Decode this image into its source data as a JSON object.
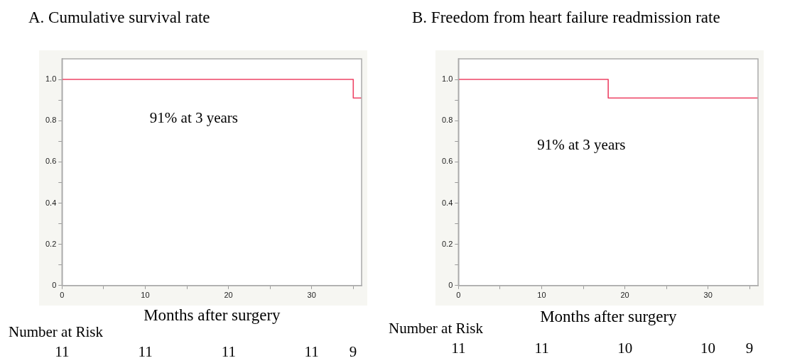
{
  "chart_data": [
    {
      "type": "step",
      "title": "A. Cumulative survival rate",
      "xlabel": "Months after surgery",
      "series": [
        {
          "color": "#ee4466",
          "x": [
            0,
            35,
            36
          ],
          "values": [
            1,
            0.91,
            0.91
          ]
        }
      ],
      "xlim": [
        0,
        36
      ],
      "xticks": [
        0,
        {
          "value": 5,
          "label": null
        },
        10,
        {
          "value": 15,
          "label": null
        },
        20,
        {
          "value": 25,
          "label": null
        },
        30,
        {
          "value": 35,
          "label": null
        }
      ],
      "ylim": [
        0,
        1.1
      ],
      "yticks": [
        0,
        {
          "value": 0.1,
          "label": null
        },
        0.2,
        {
          "value": 0.3,
          "label": null
        },
        0.4,
        {
          "value": 0.5,
          "label": null
        },
        0.6,
        {
          "value": 0.7,
          "label": null
        },
        0.8,
        {
          "value": 0.9,
          "label": null
        },
        {
          "value": 1,
          "label": "1.0"
        }
      ],
      "grid": false,
      "legend": false,
      "marker": "none",
      "line_style": "solid",
      "annotations": [
        "91% at 3 years",
        "Number at Risk",
        "11",
        "11",
        "11",
        "11",
        "9"
      ]
    },
    {
      "type": "step",
      "title": "B. Freedom from heart failure readmission rate",
      "xlabel": "Months after surgery",
      "series": [
        {
          "color": "#ee4466",
          "x": [
            0,
            18,
            36
          ],
          "values": [
            1,
            0.91,
            0.91
          ]
        }
      ],
      "xlim": [
        0,
        36
      ],
      "xticks": [
        0,
        {
          "value": 5,
          "label": null
        },
        10,
        {
          "value": 15,
          "label": null
        },
        20,
        {
          "value": 25,
          "label": null
        },
        30,
        {
          "value": 35,
          "label": null
        }
      ],
      "ylim": [
        0,
        1.1
      ],
      "yticks": [
        0,
        {
          "value": 0.1,
          "label": null
        },
        0.2,
        {
          "value": 0.3,
          "label": null
        },
        0.4,
        {
          "value": 0.5,
          "label": null
        },
        0.6,
        {
          "value": 0.7,
          "label": null
        },
        0.8,
        {
          "value": 0.9,
          "label": null
        },
        {
          "value": 1,
          "label": "1.0"
        }
      ],
      "grid": false,
      "legend": false,
      "marker": "none",
      "line_style": "solid",
      "annotations": [
        "91% at 3 years",
        "Number at Risk",
        "11",
        "11",
        "10",
        "10",
        "9"
      ]
    }
  ]
}
